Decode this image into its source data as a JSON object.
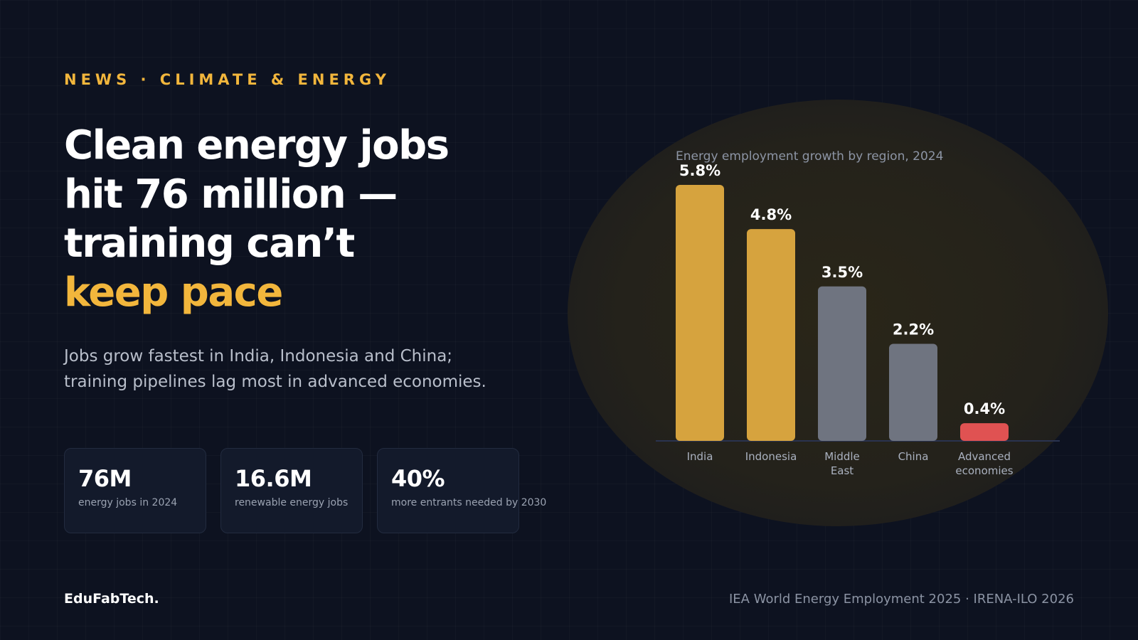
{
  "kicker": "NEWS · CLIMATE & ENERGY",
  "headline": {
    "line1": "Clean energy jobs",
    "line2": "hit 76 million —",
    "line3": "training can’t",
    "accent": "keep pace"
  },
  "subtitle": {
    "line1": "Jobs grow fastest in India, Indonesia and China;",
    "line2": "training pipelines lag most in advanced economies."
  },
  "stats": [
    {
      "value": "76M",
      "label": "energy jobs in 2024"
    },
    {
      "value": "16.6M",
      "label": "renewable energy jobs"
    },
    {
      "value": "40%",
      "label": "more entrants needed by 2030"
    }
  ],
  "brand": "EduFabTech.",
  "source": "IEA World Energy Employment 2025 · IRENA-ILO 2026",
  "colors": {
    "accent": "#f2b63c",
    "bar_highlight": "#d6a33e",
    "bar_neutral": "#6f7480",
    "bar_low": "#e05252",
    "background": "#0d1220"
  },
  "chart_data": {
    "type": "bar",
    "title": "Energy employment growth by region, 2024",
    "categories": [
      [
        "India"
      ],
      [
        "Indonesia"
      ],
      [
        "Middle",
        "East"
      ],
      [
        "China"
      ],
      [
        "Advanced",
        "economies"
      ]
    ],
    "values": [
      5.8,
      4.8,
      3.5,
      2.2,
      0.4
    ],
    "value_labels": [
      "5.8%",
      "4.8%",
      "3.5%",
      "2.2%",
      "0.4%"
    ],
    "bar_colors": [
      "#d6a33e",
      "#d6a33e",
      "#6f7480",
      "#6f7480",
      "#e05252"
    ],
    "unit": "%",
    "ylim": [
      0,
      5.8
    ],
    "grid": false,
    "legend": "none"
  }
}
